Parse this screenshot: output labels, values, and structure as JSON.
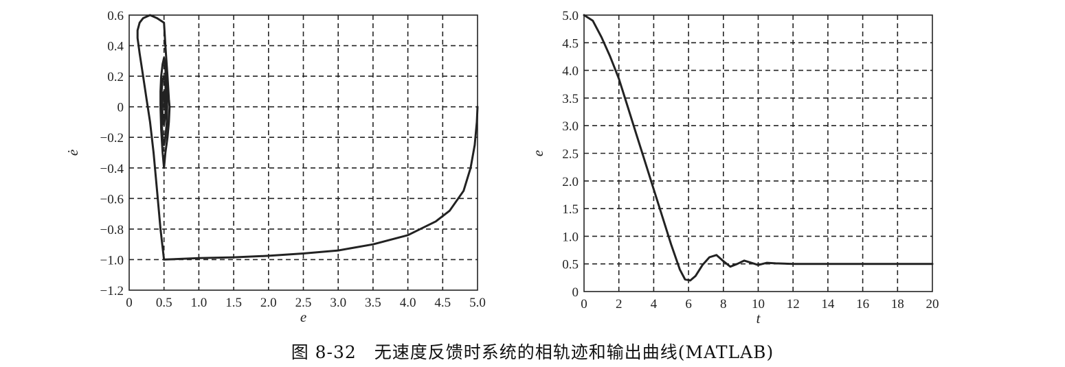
{
  "caption": "图 8-32　无速度反馈时系统的相轨迹和输出曲线(MATLAB)",
  "chart_data": [
    {
      "type": "line",
      "xlabel": "e",
      "ylabel": "ė",
      "xlim": [
        0,
        5.0
      ],
      "ylim": [
        -1.2,
        0.6
      ],
      "grid": true,
      "x_ticks": [
        "0",
        "0.5",
        "1.0",
        "1.5",
        "2.0",
        "2.5",
        "3.0",
        "3.5",
        "4.0",
        "4.5",
        "5.0"
      ],
      "y_ticks": [
        "0.6",
        "0.4",
        "0.2",
        "0",
        "−0.2",
        "−0.4",
        "−0.6",
        "−0.8",
        "−1.0",
        "−1.2"
      ],
      "series": [
        {
          "x": [
            5.0,
            4.99,
            4.96,
            4.9,
            4.8,
            4.6,
            4.4,
            4.0,
            3.5,
            3.0,
            2.5,
            2.0,
            1.5,
            1.0,
            0.5,
            0.45,
            0.4,
            0.35,
            0.3,
            0.25,
            0.2,
            0.15,
            0.12,
            0.12,
            0.15,
            0.2,
            0.3,
            0.4,
            0.5,
            0.52,
            0.55,
            0.57,
            0.58,
            0.57,
            0.55,
            0.52,
            0.5,
            0.48,
            0.46,
            0.45,
            0.45,
            0.46,
            0.48,
            0.5,
            0.52,
            0.54,
            0.545,
            0.54,
            0.52,
            0.5,
            0.48,
            0.465,
            0.46,
            0.465,
            0.48,
            0.5,
            0.52,
            0.53,
            0.52,
            0.5,
            0.48,
            0.475,
            0.48,
            0.5,
            0.51,
            0.5
          ],
          "y": [
            0,
            -0.1,
            -0.25,
            -0.4,
            -0.55,
            -0.68,
            -0.75,
            -0.84,
            -0.9,
            -0.94,
            -0.96,
            -0.975,
            -0.985,
            -0.99,
            -1.0,
            -0.8,
            -0.55,
            -0.3,
            -0.1,
            0.05,
            0.2,
            0.35,
            0.45,
            0.5,
            0.55,
            0.58,
            0.6,
            0.58,
            0.55,
            0.4,
            0.2,
            0.05,
            0.0,
            -0.1,
            -0.2,
            -0.3,
            -0.4,
            -0.3,
            -0.15,
            0.0,
            0.1,
            0.2,
            0.28,
            0.32,
            0.25,
            0.1,
            0.0,
            -0.1,
            -0.2,
            -0.25,
            -0.2,
            -0.1,
            0.0,
            0.1,
            0.18,
            0.2,
            0.15,
            0.05,
            -0.05,
            -0.12,
            -0.08,
            0.0,
            0.08,
            0.1,
            0.03,
            0.0
          ]
        }
      ]
    },
    {
      "type": "line",
      "xlabel": "t",
      "ylabel": "e",
      "xlim": [
        0,
        20
      ],
      "ylim": [
        0,
        5.0
      ],
      "grid": true,
      "x_ticks": [
        "0",
        "2",
        "4",
        "6",
        "8",
        "10",
        "12",
        "14",
        "16",
        "18",
        "20"
      ],
      "y_ticks": [
        "5.0",
        "4.5",
        "4.0",
        "3.5",
        "3.0",
        "2.5",
        "2.0",
        "1.5",
        "1.0",
        "0.5",
        "0"
      ],
      "series": [
        {
          "x": [
            0,
            0.5,
            1,
            1.5,
            2,
            2.5,
            3,
            3.5,
            4,
            4.5,
            5,
            5.5,
            5.8,
            6.1,
            6.4,
            6.8,
            7.2,
            7.6,
            8.0,
            8.4,
            8.8,
            9.2,
            9.6,
            10.0,
            10.5,
            11,
            12,
            14,
            16,
            18,
            20
          ],
          "y": [
            5.0,
            4.9,
            4.6,
            4.25,
            3.85,
            3.35,
            2.85,
            2.35,
            1.85,
            1.35,
            0.85,
            0.4,
            0.22,
            0.2,
            0.28,
            0.48,
            0.62,
            0.66,
            0.55,
            0.45,
            0.5,
            0.56,
            0.52,
            0.48,
            0.52,
            0.51,
            0.5,
            0.5,
            0.5,
            0.5,
            0.5
          ]
        }
      ]
    }
  ]
}
